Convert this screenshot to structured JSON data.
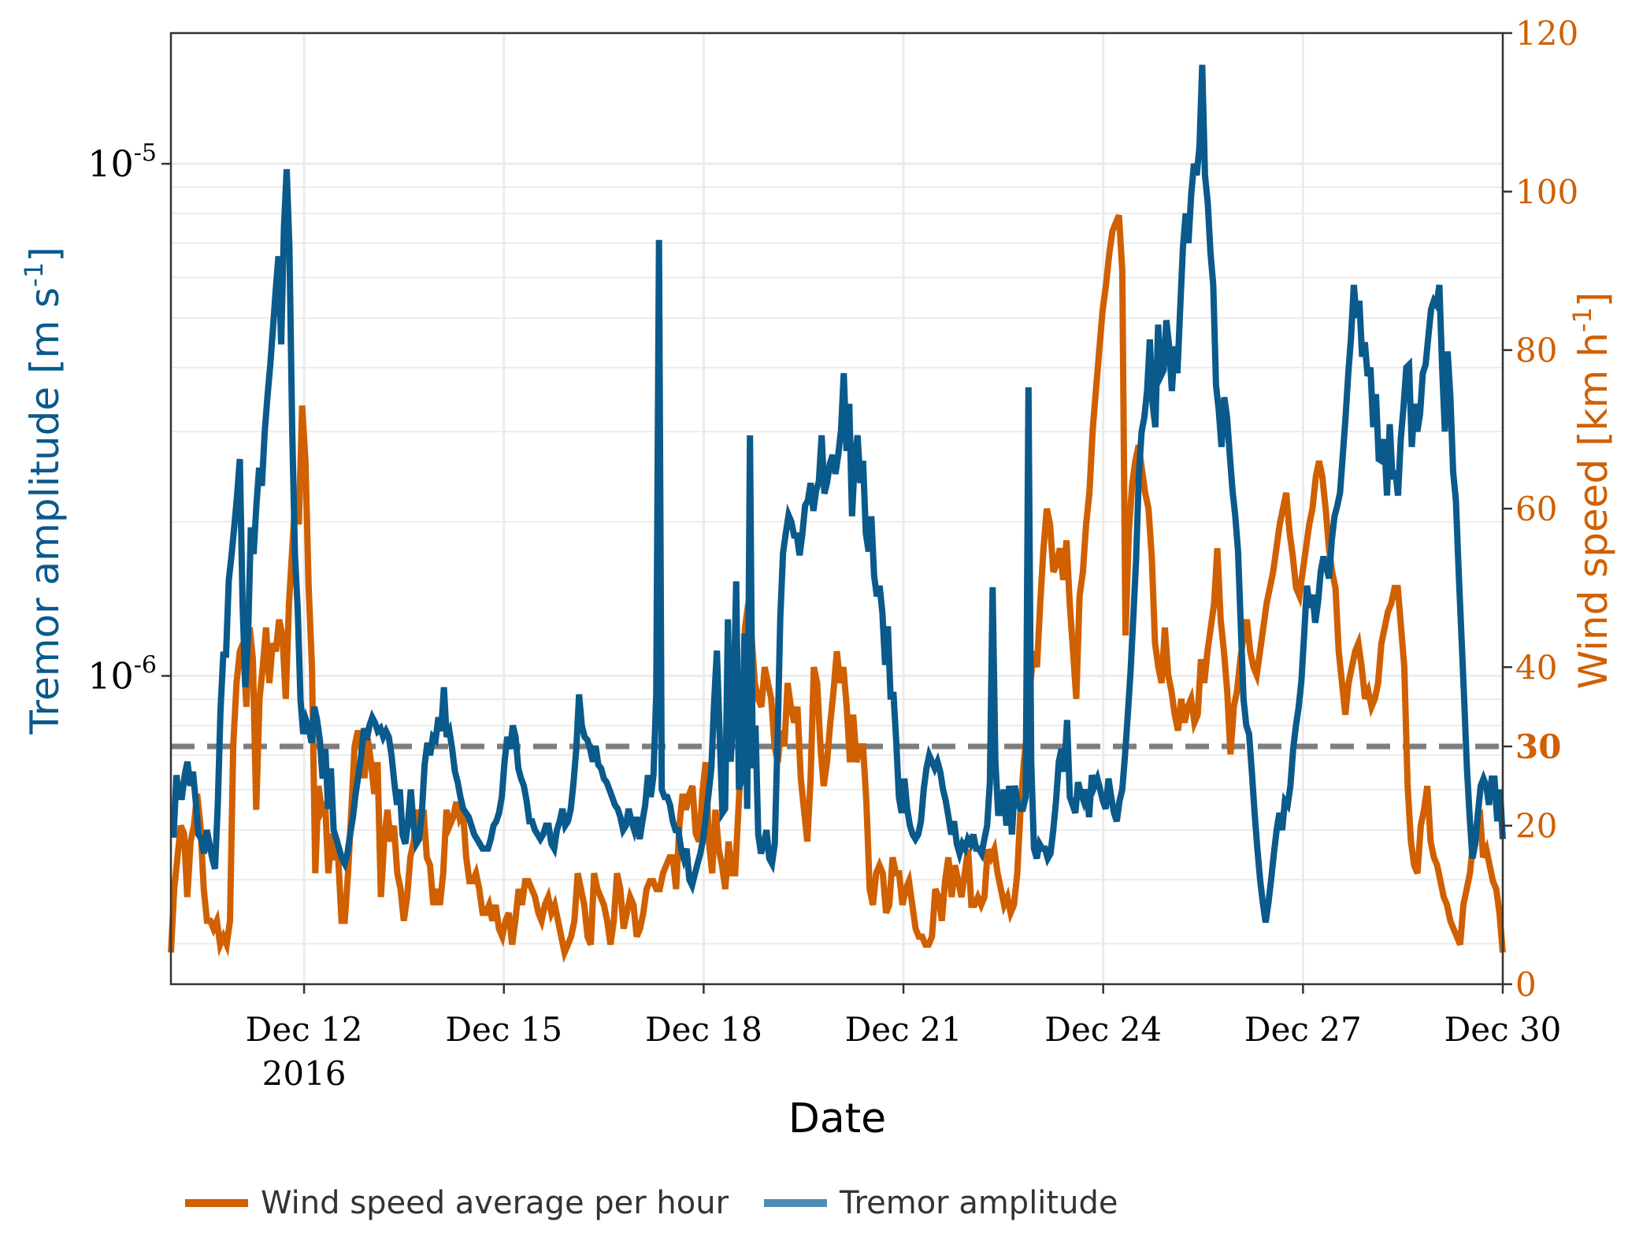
{
  "chart_data": {
    "type": "line",
    "xlabel": "Date",
    "x_ticks": [
      {
        "label": "Dec 12",
        "sub": "2016",
        "value": "2016-12-12"
      },
      {
        "label": "Dec 15",
        "sub": "",
        "value": "2016-12-15"
      },
      {
        "label": "Dec 18",
        "sub": "",
        "value": "2016-12-18"
      },
      {
        "label": "Dec 21",
        "sub": "",
        "value": "2016-12-21"
      },
      {
        "label": "Dec 24",
        "sub": "",
        "value": "2016-12-24"
      },
      {
        "label": "Dec 27",
        "sub": "",
        "value": "2016-12-27"
      },
      {
        "label": "Dec 30",
        "sub": "",
        "value": "2016-12-30"
      }
    ],
    "xlim": [
      "2016-12-10",
      "2016-12-30"
    ],
    "left_axis": {
      "label_main": "Tremor amplitude [m s",
      "label_sup": "-1",
      "label_end": "]",
      "scale": "log",
      "ylim": [
        2.5e-07,
        1.8e-05
      ],
      "ticks": [
        {
          "value": 1e-06,
          "base": "10",
          "exp": "-6"
        },
        {
          "value": 1e-05,
          "base": "10",
          "exp": "-5"
        }
      ],
      "color": "#0a5a8c"
    },
    "right_axis": {
      "label_main": "Wind speed [km h",
      "label_sup": "-1",
      "label_end": "]",
      "scale": "linear",
      "ylim": [
        0,
        120
      ],
      "ticks": [
        "0",
        "20",
        "40",
        "60",
        "80",
        "100",
        "120"
      ],
      "highlight_tick": "30",
      "color": "#d06000"
    },
    "threshold": {
      "value": 30,
      "axis": "right",
      "style": "dashed",
      "color": "#777777"
    },
    "grid": true,
    "legend_position": "bottom-left",
    "series": [
      {
        "name": "Tremor amplitude",
        "axis": "left",
        "color": "#0a5a8c",
        "legend_color": "#4f8db5",
        "time_range": [
          "2016-12-10 00:00",
          "2016-12-30 00:00"
        ],
        "values": [
          4.9e-07,
          4.9e-07,
          6.4e-07,
          5.8e-07,
          5.8e-07,
          6.4e-07,
          6.8e-07,
          6.1e-07,
          6.5e-07,
          5.7e-07,
          4.9e-07,
          4.8e-07,
          4.5e-07,
          5e-07,
          4.7e-07,
          4.4e-07,
          4.2e-07,
          5.6e-07,
          8.6e-07,
          1.1e-06,
          1.1e-06,
          1.54e-06,
          1.72e-06,
          1.96e-06,
          2.25e-06,
          2.65e-06,
          1.38e-06,
          9.5e-07,
          1.2e-06,
          1.95e-06,
          1.73e-06,
          2.15e-06,
          2.55e-06,
          2.35e-06,
          2.98e-06,
          3.5e-06,
          4.02e-06,
          4.75e-06,
          5.65e-06,
          6.6e-06,
          4.44e-06,
          7.5e-06,
          9.76e-06,
          6.84e-06,
          3.02e-06,
          1.72e-06,
          1.35e-06,
          9e-07,
          7.7e-07,
          8.2e-07,
          7.9e-07,
          7.4e-07,
          8.7e-07,
          8.2e-07,
          7.5e-07,
          6.3e-07,
          7.2e-07,
          5.5e-07,
          6.6e-07,
          5e-07,
          4.8e-07,
          4.6e-07,
          4.4e-07,
          4.3e-07,
          4.5e-07,
          4.9e-07,
          5.3e-07,
          5.9e-07,
          6.4e-07,
          7e-07,
          7.9e-07,
          7.5e-07,
          8e-07,
          8.3e-07,
          8.1e-07,
          7.8e-07,
          7.9e-07,
          7.6e-07,
          7.8e-07,
          7.6e-07,
          7e-07,
          6.2e-07,
          5.6e-07,
          6e-07,
          4.9e-07,
          4.7e-07,
          5.2e-07,
          6e-07,
          5.1e-07,
          4.7e-07,
          4.8e-07,
          5.4e-07,
          6.7e-07,
          7.4e-07,
          7e-07,
          7.6e-07,
          7.5e-07,
          8.3e-07,
          7.8e-07,
          9.5e-07,
          7.6e-07,
          7.8e-07,
          7.2e-07,
          6.5e-07,
          6.2e-07,
          5.8e-07,
          5.5e-07,
          5.4e-07,
          5.3e-07,
          5.1e-07,
          4.9e-07,
          4.8e-07,
          4.7e-07,
          4.6e-07,
          4.6e-07,
          4.6e-07,
          4.8e-07,
          5.1e-07,
          5.2e-07,
          5.4e-07,
          5.8e-07,
          6.8e-07,
          7.6e-07,
          7.2e-07,
          8e-07,
          7.6e-07,
          6.6e-07,
          6.3e-07,
          6.1e-07,
          5.7e-07,
          5.2e-07,
          5.2e-07,
          5e-07,
          4.9e-07,
          4.8e-07,
          4.9e-07,
          5.1e-07,
          5.1e-07,
          4.7e-07,
          4.6e-07,
          5e-07,
          5.2e-07,
          5.5e-07,
          5.1e-07,
          5.2e-07,
          5.5e-07,
          6.2e-07,
          7.2e-07,
          9.2e-07,
          8e-07,
          7.6e-07,
          7.5e-07,
          7.2e-07,
          6.8e-07,
          7.3e-07,
          6.7e-07,
          6.6e-07,
          6.3e-07,
          6.2e-07,
          6e-07,
          5.8e-07,
          5.6e-07,
          5.5e-07,
          5.3e-07,
          5e-07,
          5.1e-07,
          5.5e-07,
          5.2e-07,
          5e-07,
          5.3e-07,
          4.8e-07,
          5.2e-07,
          5.6e-07,
          6.4e-07,
          5.8e-07,
          6.4e-07,
          9.2e-07,
          7.1e-06,
          6e-07,
          5.8e-07,
          5.8e-07,
          5.6e-07,
          5.2e-07,
          5e-07,
          5e-07,
          4.6e-07,
          4.4e-07,
          4.6e-07,
          4e-07,
          3.9e-07,
          4.1e-07,
          4.3e-07,
          4.5e-07,
          4.8e-07,
          5.3e-07,
          5.9e-07,
          6.6e-07,
          8.9e-07,
          1.12e-06,
          7.7e-07,
          5.4e-07,
          5.5e-07,
          1.29e-06,
          6.8e-07,
          8.6e-07,
          1.53e-06,
          6e-07,
          6.3e-07,
          1.21e-06,
          5.5e-07,
          2.95e-06,
          6.6e-07,
          8e-07,
          4.9e-07,
          4.5e-07,
          4.7e-07,
          5e-07,
          4.4e-07,
          4.3e-07,
          4.7e-07,
          7.5e-07,
          1.3e-06,
          1.74e-06,
          1.9e-06,
          2.06e-06,
          2e-06,
          1.88e-06,
          1.88e-06,
          1.72e-06,
          1.89e-06,
          2.15e-06,
          2.2e-06,
          2.38e-06,
          2.1e-06,
          2.3e-06,
          2.4e-06,
          2.95e-06,
          2.27e-06,
          2.39e-06,
          2.6e-06,
          2.7e-06,
          2.48e-06,
          2.7e-06,
          3.02e-06,
          3.9e-06,
          2.75e-06,
          3.4e-06,
          2.05e-06,
          2.65e-06,
          2.95e-06,
          2.38e-06,
          2.63e-06,
          1.9e-06,
          1.75e-06,
          2.05e-06,
          1.57e-06,
          1.43e-06,
          1.5e-06,
          1.33e-06,
          1.05e-06,
          1.25e-06,
          9e-07,
          9.3e-07,
          7.5e-07,
          5.8e-07,
          5.4e-07,
          6.3e-07,
          5.5e-07,
          5.1e-07,
          4.9e-07,
          4.8e-07,
          4.9e-07,
          5.2e-07,
          6e-07,
          6.6e-07,
          7e-07,
          6.8e-07,
          6.6e-07,
          6.8e-07,
          6.5e-07,
          6e-07,
          5.7e-07,
          5.3e-07,
          4.9e-07,
          5.2e-07,
          4.7e-07,
          4.5e-07,
          4.7e-07,
          4.6e-07,
          4.8e-07,
          4.7e-07,
          4.9e-07,
          4.6e-07,
          4.6e-07,
          4.5e-07,
          4.8e-07,
          5.1e-07,
          6.2e-07,
          1.49e-06,
          6.8e-07,
          5.4e-07,
          5.4e-07,
          6e-07,
          5.1e-07,
          6.1e-07,
          4.9e-07,
          6.1e-07,
          5.7e-07,
          5.5e-07,
          5.5e-07,
          5.8e-07,
          3.66e-06,
          6.8e-07,
          4.6e-07,
          4.4e-07,
          4.7e-07,
          4.6e-07,
          4.6e-07,
          4.4e-07,
          4.5e-07,
          5e-07,
          5.7e-07,
          6.8e-07,
          7.2e-07,
          6.5e-07,
          8.2e-07,
          5.8e-07,
          5.6e-07,
          5.4e-07,
          6.2e-07,
          5.9e-07,
          5.7e-07,
          6e-07,
          5.3e-07,
          6.4e-07,
          6.1e-07,
          6.3e-07,
          6e-07,
          5.7e-07,
          5.5e-07,
          6.3e-07,
          5.8e-07,
          5.4e-07,
          5.2e-07,
          5.7e-07,
          6e-07,
          7e-07,
          8.4e-07,
          1.02e-06,
          1.3e-06,
          1.68e-06,
          2.45e-06,
          2.99e-06,
          3.2e-06,
          3.6e-06,
          4.54e-06,
          3.4e-06,
          3.06e-06,
          4.85e-06,
          3.85e-06,
          3.95e-06,
          4.95e-06,
          4.4e-06,
          3.6e-06,
          4.4e-06,
          3.9e-06,
          5.2e-06,
          6.85e-06,
          8e-06,
          7e-06,
          8.7e-06,
          1e-05,
          9.5e-06,
          1.08e-05,
          1.56e-05,
          9.5e-06,
          8.4e-06,
          6.7e-06,
          5.8e-06,
          3.7e-06,
          3.3e-06,
          2.8e-06,
          3.5e-06,
          3.2e-06,
          2.7e-06,
          2.3e-06,
          2.05e-06,
          1.75e-06,
          1.25e-06,
          9e-07,
          8e-07,
          7.7e-07,
          6.5e-07,
          5.4e-07,
          4.6e-07,
          4e-07,
          3.6e-07,
          3.3e-07,
          3.6e-07,
          4e-07,
          4.5e-07,
          5e-07,
          5.4e-07,
          5e-07,
          5.7e-07,
          5.6e-07,
          6.1e-07,
          7.2e-07,
          8e-07,
          8.7e-07,
          9.8e-07,
          1.21e-06,
          1.5e-06,
          1.36e-06,
          1.44e-06,
          1.27e-06,
          1.39e-06,
          1.6e-06,
          1.71e-06,
          1.63e-06,
          1.55e-06,
          1.84e-06,
          2.05e-06,
          2.15e-06,
          2.28e-06,
          2.7e-06,
          3.2e-06,
          3.9e-06,
          4.6e-06,
          5.8e-06,
          5e-06,
          5.4e-06,
          4.2e-06,
          4.48e-06,
          3.85e-06,
          4e-06,
          3.06e-06,
          3.55e-06,
          2.65e-06,
          2.63e-06,
          2.9e-06,
          2.25e-06,
          3.1e-06,
          2.42e-06,
          2.52e-06,
          2.25e-06,
          2.9e-06,
          3.35e-06,
          4e-06,
          4.05e-06,
          2.8e-06,
          3.4e-06,
          3e-06,
          3.25e-06,
          3.9e-06,
          4.05e-06,
          4.6e-06,
          5.2e-06,
          5.4e-06,
          5.3e-06,
          5.8e-06,
          4e-06,
          3e-06,
          4.3e-06,
          3.5e-06,
          2.5e-06,
          2.2e-06,
          1.6e-06,
          1.2e-06,
          9e-07,
          6.6e-07,
          5.3e-07,
          4.4e-07,
          4.7e-07,
          5.4e-07,
          6.1e-07,
          6.3e-07,
          6.1e-07,
          5.6e-07,
          6.3e-07,
          6.3e-07,
          5.2e-07,
          6e-07,
          4.8e-07
        ]
      },
      {
        "name": "Wind speed average per hour",
        "axis": "right",
        "color": "#d06000",
        "legend_color": "#d06000",
        "time_range": [
          "2016-12-10 00:00",
          "2016-12-30 00:00"
        ],
        "values": [
          4,
          12,
          16,
          20,
          19,
          11,
          18,
          20,
          24,
          20,
          12,
          8,
          8,
          7,
          8,
          5,
          6,
          5,
          8,
          30,
          38,
          42,
          43,
          35,
          45,
          41,
          22,
          36,
          40,
          45,
          38,
          43,
          42,
          46,
          44,
          36,
          48,
          55,
          62,
          58,
          73,
          66,
          50,
          40,
          14,
          25,
          22,
          23,
          14,
          19,
          16,
          16,
          8,
          8,
          14,
          22,
          30,
          32,
          30,
          26,
          31,
          28,
          24,
          28,
          11,
          18,
          22,
          18,
          20,
          14,
          12,
          8,
          11,
          16,
          18,
          22,
          20,
          22,
          16,
          15,
          10,
          12,
          10,
          14,
          22,
          20,
          21,
          23,
          21,
          22,
          16,
          13,
          13,
          14,
          12,
          9,
          9,
          10,
          8,
          10,
          7,
          6,
          8,
          9,
          5,
          8,
          12,
          10,
          13,
          13,
          12,
          11,
          9,
          8,
          10,
          11,
          9,
          10,
          8,
          6,
          4,
          5,
          6,
          8,
          14,
          12,
          10,
          6,
          5,
          14,
          12,
          11,
          10,
          8,
          5,
          8,
          14,
          12,
          7,
          9,
          11,
          10,
          6,
          7,
          9,
          12,
          13,
          13,
          12,
          12,
          14,
          15,
          16,
          16,
          12,
          20,
          24,
          22,
          24,
          25,
          19,
          18,
          24,
          28,
          18,
          14,
          22,
          17,
          15,
          12,
          18,
          14,
          14,
          22,
          30,
          45,
          48,
          44,
          38,
          36,
          35,
          40,
          38,
          36,
          30,
          28,
          32,
          30,
          38,
          35,
          33,
          35,
          26,
          22,
          18,
          26,
          40,
          38,
          30,
          25,
          28,
          33,
          37,
          42,
          38,
          40,
          35,
          28,
          34,
          28,
          30,
          30,
          23,
          12,
          10,
          14,
          15,
          14,
          9,
          10,
          16,
          14,
          14,
          10,
          12,
          13,
          10,
          7,
          6,
          6,
          5,
          5,
          6,
          12,
          11,
          8,
          13,
          16,
          11,
          15,
          13,
          11,
          14,
          17,
          10,
          10,
          11,
          10,
          11,
          17,
          16,
          17,
          14,
          12,
          10,
          11,
          9,
          10,
          14,
          22,
          28,
          32,
          38,
          42,
          40,
          48,
          55,
          60,
          58,
          52,
          53,
          55,
          51,
          56,
          48,
          42,
          36,
          49,
          52,
          58,
          62,
          70,
          75,
          80,
          85,
          88,
          92,
          95,
          96,
          97,
          90,
          44,
          57,
          63,
          66,
          68,
          65,
          62,
          60,
          54,
          43,
          40,
          38,
          45,
          39,
          37,
          34,
          32,
          36,
          33,
          35,
          36,
          33,
          34,
          41,
          38,
          42,
          45,
          48,
          55,
          46,
          42,
          37,
          29,
          35,
          37,
          41,
          44,
          46,
          42,
          40,
          39,
          42,
          45,
          48,
          50,
          52,
          55,
          58,
          60,
          62,
          57,
          54,
          50,
          49,
          52,
          55,
          58,
          60,
          64,
          66,
          64,
          60,
          55,
          52,
          50,
          42,
          38,
          34,
          38,
          40,
          42,
          43,
          40,
          36,
          37,
          35,
          36,
          38,
          43,
          45,
          47,
          48,
          50,
          50,
          45,
          40,
          25,
          18,
          15,
          14,
          20,
          22,
          25,
          18,
          16,
          15,
          13,
          11,
          10,
          8,
          7,
          6,
          5,
          10,
          12,
          14,
          18,
          20,
          22,
          16,
          17,
          15,
          13,
          12,
          9,
          4
        ]
      }
    ],
    "legend": [
      {
        "label": "Wind speed average per hour",
        "color": "#d06000"
      },
      {
        "label": "Tremor amplitude",
        "color": "#4f8db5"
      }
    ]
  }
}
